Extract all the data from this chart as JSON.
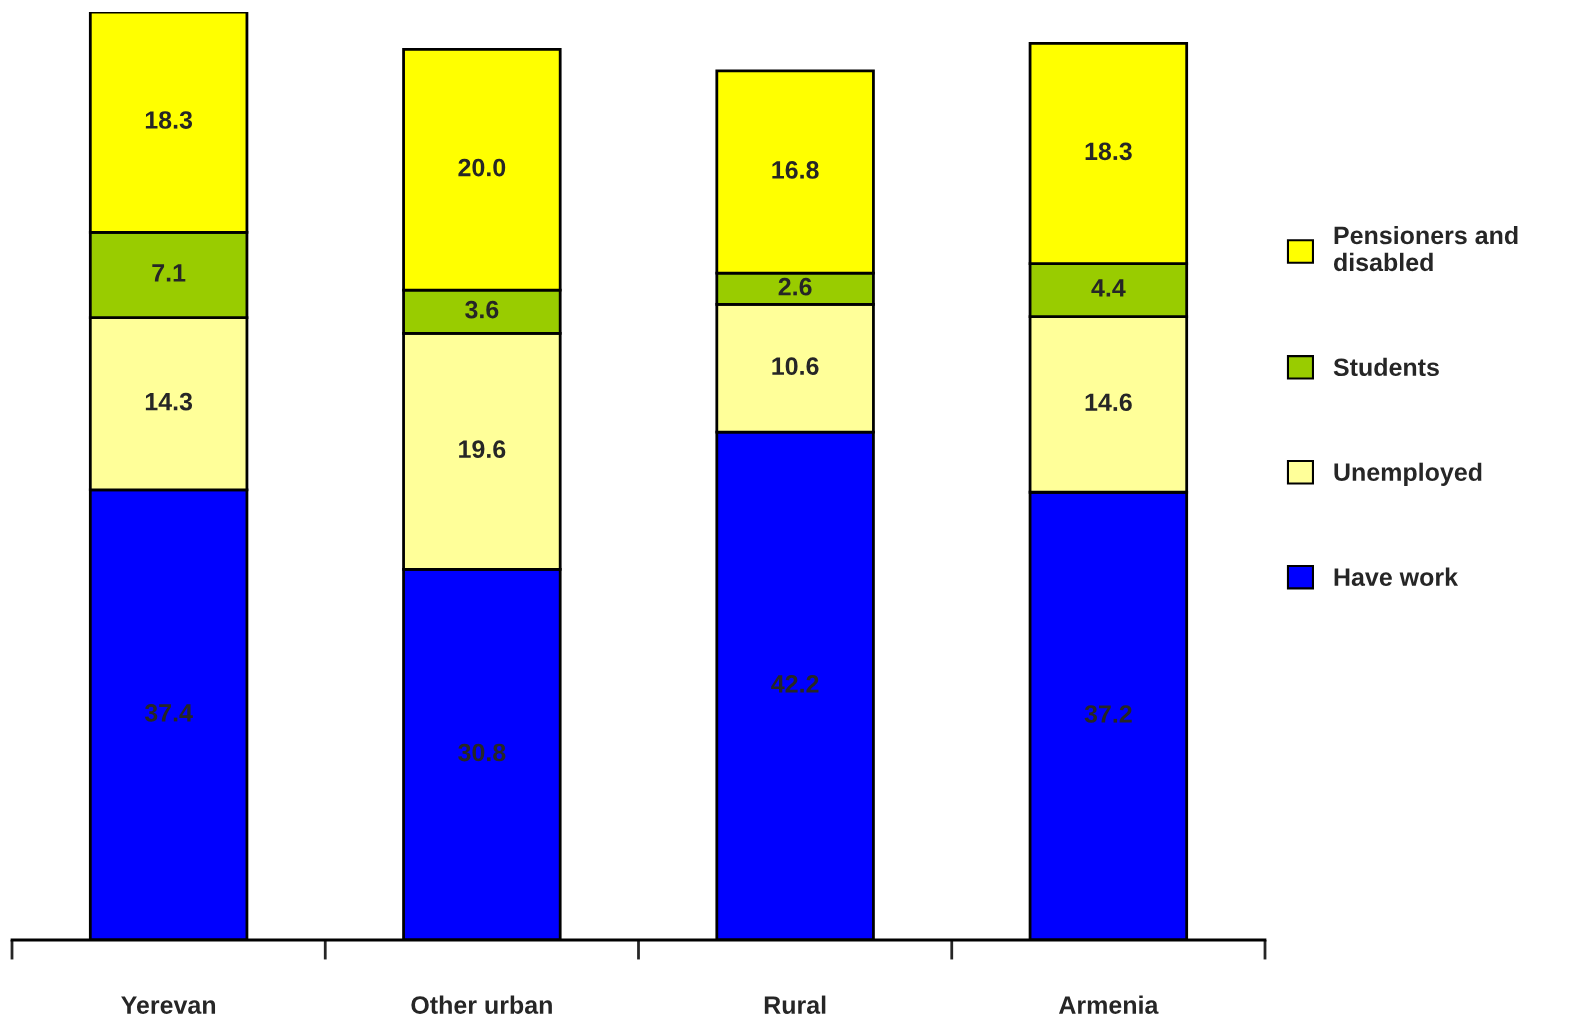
{
  "chart_data": {
    "type": "bar",
    "stacked": true,
    "legend": "right",
    "grid": false,
    "categories": [
      "Yerevan",
      "Other urban",
      "Rural",
      "Armenia"
    ],
    "series": [
      {
        "name": "Have work",
        "color": "#0000ff",
        "values": [
          37.4,
          30.8,
          42.2,
          37.2
        ],
        "value_labels": [
          "37.4",
          "30.8",
          "42.2",
          "37.2"
        ]
      },
      {
        "name": "Unemployed",
        "color": "#ffff99",
        "values": [
          14.3,
          19.6,
          10.6,
          14.6
        ],
        "value_labels": [
          "14.3",
          "19.6",
          "10.6",
          "14.6"
        ]
      },
      {
        "name": "Students",
        "color": "#99cc00",
        "values": [
          7.1,
          3.6,
          2.6,
          4.4
        ],
        "value_labels": [
          "7.1",
          "3.6",
          "2.6",
          "4.4"
        ]
      },
      {
        "name": "Pensioners and disabled",
        "color": "#ffff00",
        "values": [
          18.3,
          20.0,
          16.8,
          18.3
        ],
        "value_labels": [
          "18.3",
          "20.0",
          "16.8",
          "18.3"
        ]
      }
    ]
  }
}
